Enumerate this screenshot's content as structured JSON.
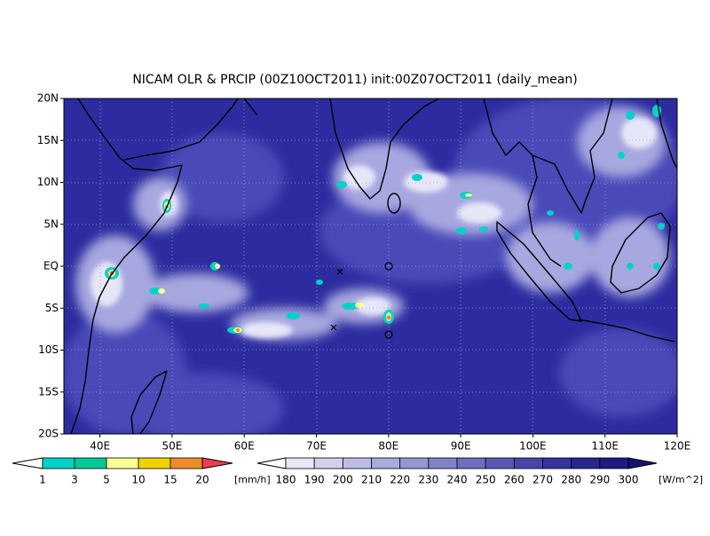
{
  "title": "NICAM OLR & PRCIP (00Z10OCT2011) init:00Z07OCT2011 (daily_mean)",
  "map": {
    "lat_labels": [
      "20N",
      "15N",
      "10N",
      "5N",
      "EQ",
      "5S",
      "10S",
      "15S",
      "20S"
    ],
    "lon_labels": [
      "40E",
      "50E",
      "60E",
      "70E",
      "80E",
      "90E",
      "100E",
      "110E",
      "120E"
    ]
  },
  "colorbars": [
    {
      "labels": [
        "1",
        "3",
        "5",
        "10",
        "15",
        "20"
      ],
      "unit": "[mm/h]"
    },
    {
      "labels": [
        "180",
        "190",
        "200",
        "210",
        "220",
        "230",
        "240",
        "250",
        "260",
        "270",
        "280",
        "290",
        "300"
      ],
      "unit": "[W/m^2]"
    }
  ]
}
